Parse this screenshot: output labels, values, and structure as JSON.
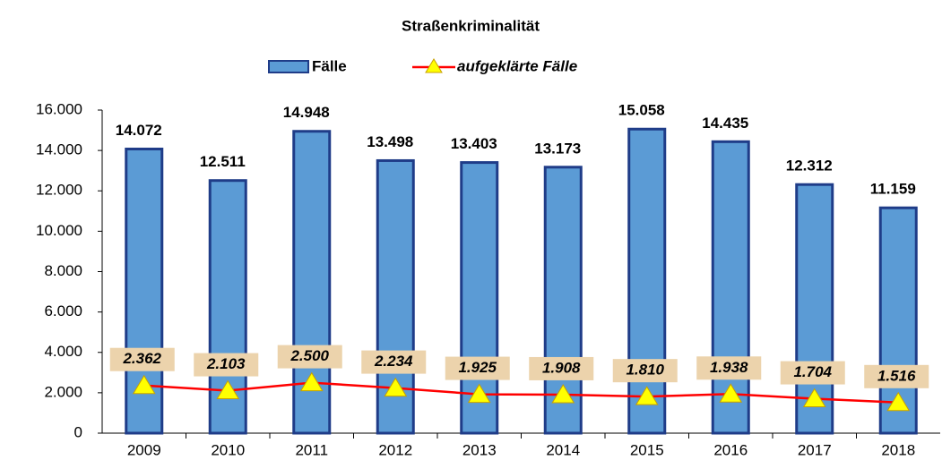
{
  "chart_data": {
    "type": "bar",
    "title": "Straßenkriminalität",
    "categories": [
      "2009",
      "2010",
      "2011",
      "2012",
      "2013",
      "2014",
      "2015",
      "2016",
      "2017",
      "2018"
    ],
    "series": [
      {
        "name": "Fälle",
        "type": "bar",
        "color": "#5b9bd5",
        "values": [
          14072,
          12511,
          14948,
          13498,
          13403,
          13173,
          15058,
          14435,
          12312,
          11159
        ],
        "value_labels": [
          "14.072",
          "12.511",
          "14.948",
          "13.498",
          "13.403",
          "13.173",
          "15.058",
          "14.435",
          "12.312",
          "11.159"
        ]
      },
      {
        "name": "aufgeklärte Fälle",
        "type": "line",
        "color": "#ff0000",
        "marker_color": "#ffff00",
        "values": [
          2362,
          2103,
          2500,
          2234,
          1925,
          1908,
          1810,
          1938,
          1704,
          1516
        ],
        "value_labels": [
          "2.362",
          "2.103",
          "2.500",
          "2.234",
          "1.925",
          "1.908",
          "1.810",
          "1.938",
          "1.704",
          "1.516"
        ]
      }
    ],
    "ylim": [
      0,
      16000
    ],
    "yticks": [
      0,
      {
        "value": 2000,
        "label": "2.000"
      },
      {
        "value": 4000,
        "label": "4.000"
      },
      {
        "value": 6000,
        "label": "6.000"
      },
      {
        "value": 8000,
        "label": "8.000"
      },
      {
        "value": 10000,
        "label": "10.000"
      },
      {
        "value": 12000,
        "label": "12.000"
      },
      {
        "value": 14000,
        "label": "14.000"
      },
      {
        "value": 16000,
        "label": "16.000"
      }
    ],
    "grid": false,
    "legend": "top"
  }
}
